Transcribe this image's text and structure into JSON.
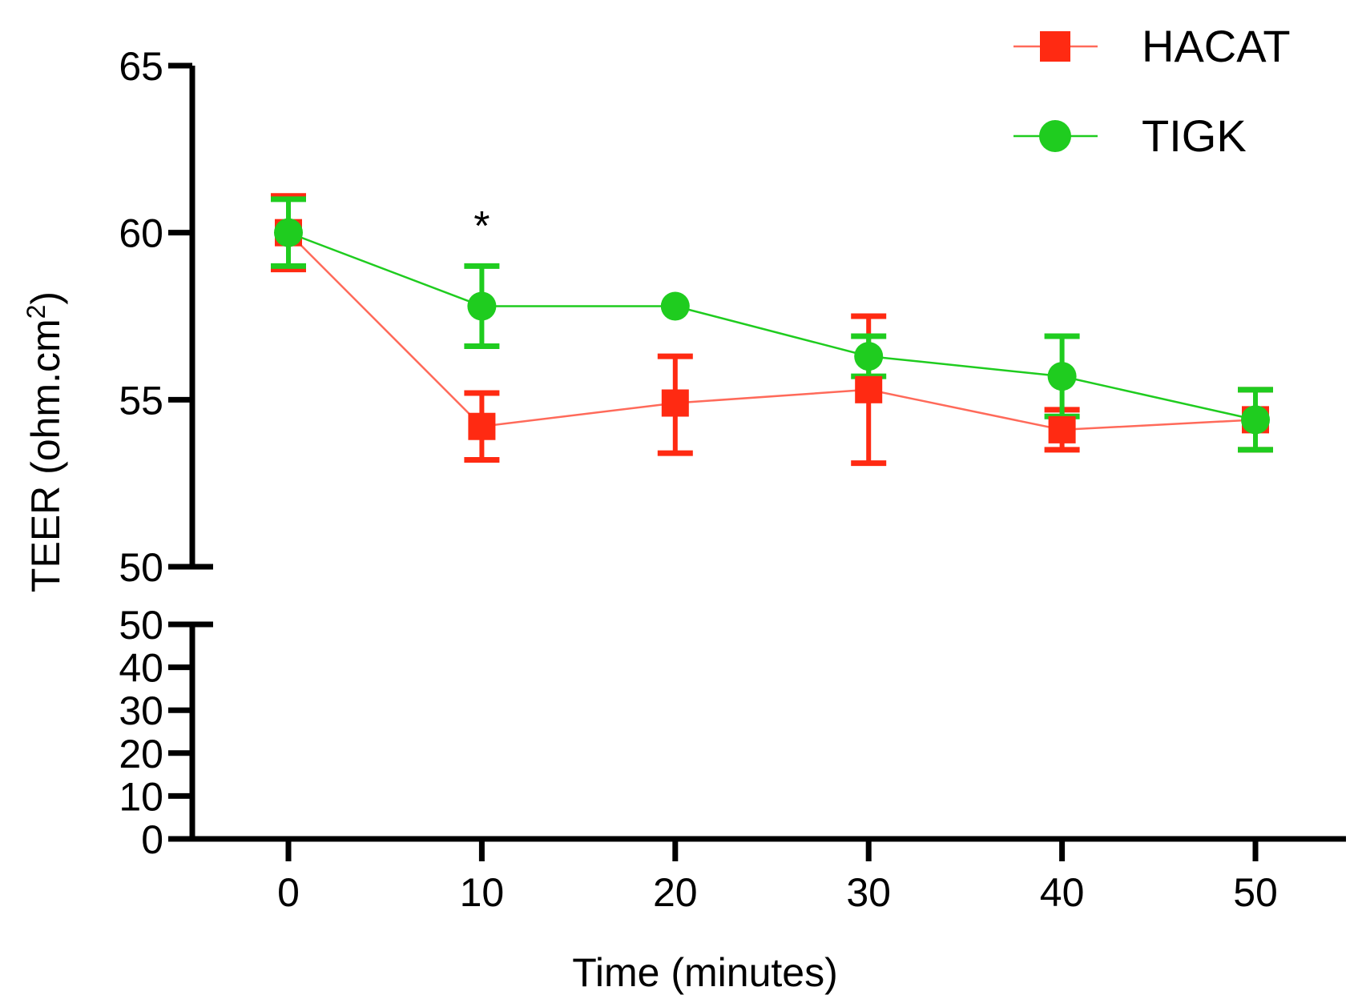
{
  "chart_data": {
    "type": "line",
    "title": "",
    "xlabel": "Time (minutes)",
    "ylabel": "TEER (ohm.cm²)",
    "ylabel_main": "TEER (ohm.cm",
    "ylabel_sup": "2",
    "ylabel_close": ")",
    "x": [
      0,
      10,
      20,
      30,
      40,
      50
    ],
    "x_ticks": [
      "0",
      "10",
      "20",
      "30",
      "40",
      "50"
    ],
    "y_axis_upper": {
      "range": [
        50,
        65
      ],
      "ticks": [
        "50",
        "55",
        "60",
        "65"
      ],
      "tick_values": [
        50,
        55,
        60,
        65
      ]
    },
    "y_axis_lower": {
      "range": [
        0,
        50
      ],
      "ticks": [
        "0",
        "10",
        "20",
        "30",
        "40",
        "50"
      ],
      "tick_values": [
        0,
        10,
        20,
        30,
        40,
        50
      ]
    },
    "broken_axis": true,
    "grid": false,
    "legend_position": "top-right",
    "series": [
      {
        "name": "HACAT",
        "color": "#ff2a12",
        "line_color": "#ff6a5a",
        "marker": "square",
        "values": [
          60.0,
          54.2,
          54.9,
          55.3,
          54.1,
          54.4
        ],
        "err_low": [
          58.9,
          53.2,
          53.4,
          53.1,
          53.5,
          53.5
        ],
        "err_high": [
          61.1,
          55.2,
          56.3,
          57.5,
          54.7,
          55.3
        ]
      },
      {
        "name": "TIGK",
        "color": "#1fcc1f",
        "line_color": "#1fcc1f",
        "marker": "circle",
        "values": [
          60.0,
          57.8,
          57.8,
          56.3,
          55.7,
          54.4
        ],
        "err_low": [
          59.0,
          56.6,
          57.8,
          55.7,
          54.5,
          53.5
        ],
        "err_high": [
          61.0,
          59.0,
          57.8,
          56.9,
          56.9,
          55.3
        ]
      }
    ],
    "annotations": [
      {
        "text": "*",
        "x": 10,
        "y": 60.3
      }
    ]
  }
}
